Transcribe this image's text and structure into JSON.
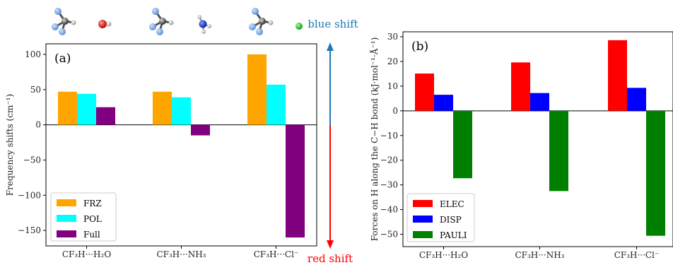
{
  "colors": {
    "FRZ": "#ffa500",
    "POL": "#00ffff",
    "Full": "#800080",
    "ELEC": "#ff0000",
    "DISP": "#0000ff",
    "PAULI": "#008000",
    "blue_shift": "#1f77b4",
    "red_shift": "#ff0000"
  },
  "annotations": {
    "blue_shift": "blue shift",
    "red_shift": "red shift"
  },
  "molecule_icons": [
    "CF3H",
    "H2O",
    "CF3H",
    "NH3",
    "CF3H",
    "Cl-"
  ],
  "chart_data": [
    {
      "type": "bar",
      "panel_label": "(a)",
      "categories": [
        "CF₃H···H₂O",
        "CF₃H···NH₃",
        "CF₃H···Cl⁻"
      ],
      "series": [
        {
          "name": "FRZ",
          "values": [
            47,
            47,
            100
          ]
        },
        {
          "name": "POL",
          "values": [
            44,
            39,
            57
          ]
        },
        {
          "name": "Full",
          "values": [
            25,
            -15,
            -160
          ]
        }
      ],
      "ylabel": "Frequency shifts (cm⁻¹)",
      "ylim": [
        -172,
        115
      ],
      "yticks": [
        -150,
        -100,
        -50,
        0,
        50,
        100
      ],
      "ytick_labels": [
        "−150",
        "−100",
        "−50",
        "0",
        "50",
        "100"
      ],
      "legend_position": "bottom-left",
      "grid": false
    },
    {
      "type": "bar",
      "panel_label": "(b)",
      "categories": [
        "CF₃H···H₂O",
        "CF₃H···NH₃",
        "CF₃H···Cl⁻"
      ],
      "series": [
        {
          "name": "ELEC",
          "values": [
            15.1,
            19.6,
            28.6
          ]
        },
        {
          "name": "DISP",
          "values": [
            6.5,
            7.2,
            9.3
          ]
        },
        {
          "name": "PAULI",
          "values": [
            -27.3,
            -32.5,
            -50.6
          ]
        }
      ],
      "ylabel": "Forces on H along the C−H bond (kJ·mol⁻¹·Å⁻¹)",
      "ylim": [
        -55,
        32
      ],
      "yticks": [
        -50,
        -40,
        -30,
        -20,
        -10,
        0,
        10,
        20,
        30
      ],
      "ytick_labels": [
        "−50",
        "−40",
        "−30",
        "−20",
        "−10",
        "0",
        "10",
        "20",
        "30"
      ],
      "legend_position": "bottom-left",
      "grid": false
    }
  ]
}
